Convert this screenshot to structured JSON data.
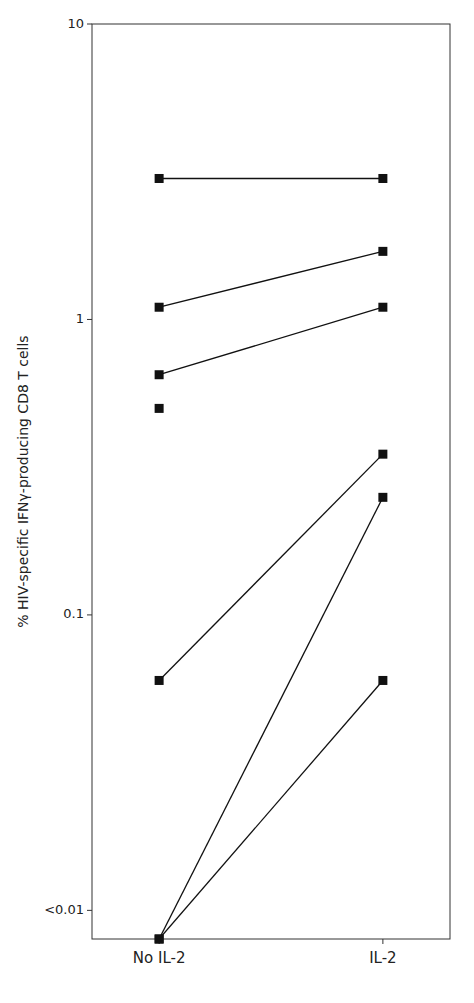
{
  "chart_data": {
    "type": "line",
    "y_label": "% HIV-specific IFNγ-producing CD8 T cells",
    "categories": [
      "No IL-2",
      "IL-2"
    ],
    "series": [
      {
        "values": [
          3.0,
          3.0
        ],
        "color": "#111111",
        "marker": "square",
        "line_style": "solid"
      },
      {
        "values": [
          1.1,
          1.7
        ],
        "color": "#111111",
        "marker": "square",
        "line_style": "solid"
      },
      {
        "values": [
          0.65,
          1.1
        ],
        "color": "#111111",
        "marker": "square",
        "line_style": "solid"
      },
      {
        "values": [
          0.06,
          0.35
        ],
        "color": "#111111",
        "marker": "square",
        "line_style": "solid"
      },
      {
        "values": [
          0.008,
          0.25
        ],
        "color": "#111111",
        "marker": "square",
        "line_style": "solid"
      },
      {
        "values": [
          0.008,
          0.06
        ],
        "color": "#111111",
        "marker": "square",
        "line_style": "solid"
      },
      {
        "values": [
          0.5,
          null
        ],
        "color": "#111111",
        "marker": "square",
        "line_style": "none"
      }
    ],
    "log": "y",
    "ylim": [
      0.008,
      10
    ],
    "yticks": [
      {
        "value": 0.01,
        "label": "<0.01"
      },
      0.1,
      1,
      10
    ],
    "grid": false
  }
}
